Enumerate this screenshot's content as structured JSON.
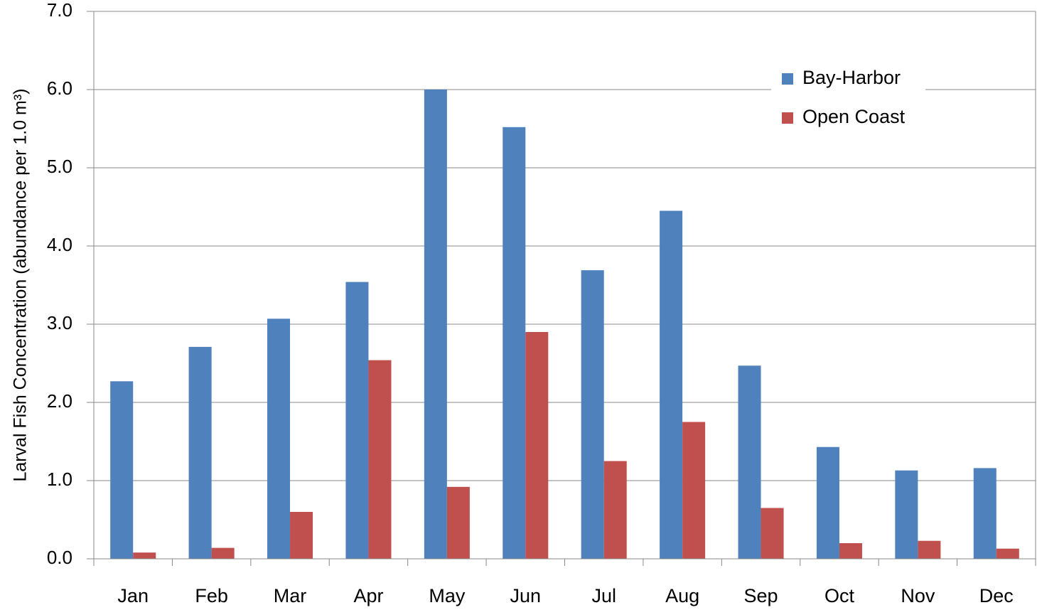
{
  "chart_data": {
    "type": "bar",
    "y_label": "Larval Fish Concentration (abundance per 1.0 m³)",
    "categories": [
      "Jan",
      "Feb",
      "Mar",
      "Apr",
      "May",
      "Jun",
      "Jul",
      "Aug",
      "Sep",
      "Oct",
      "Nov",
      "Dec"
    ],
    "series": [
      {
        "name": "Bay-Harbor",
        "color": "#4f81bd",
        "values": [
          2.27,
          2.71,
          3.07,
          3.54,
          6.0,
          5.52,
          3.69,
          4.45,
          2.47,
          1.43,
          1.13,
          1.16
        ]
      },
      {
        "name": "Open Coast",
        "color": "#c0504d",
        "values": [
          0.08,
          0.14,
          0.6,
          2.54,
          0.92,
          2.9,
          1.25,
          1.75,
          0.65,
          0.2,
          0.23,
          0.13
        ]
      }
    ],
    "ylim": [
      0,
      7
    ],
    "yticks": [
      {
        "value": 0,
        "label": "0.0"
      },
      {
        "value": 1,
        "label": "1.0"
      },
      {
        "value": 2,
        "label": "2.0"
      },
      {
        "value": 3,
        "label": "3.0"
      },
      {
        "value": 4,
        "label": "4.0"
      },
      {
        "value": 5,
        "label": "5.0"
      },
      {
        "value": 6,
        "label": "6.0"
      },
      {
        "value": 7,
        "label": "7.0"
      }
    ],
    "grid": true,
    "legend": "upper right"
  }
}
